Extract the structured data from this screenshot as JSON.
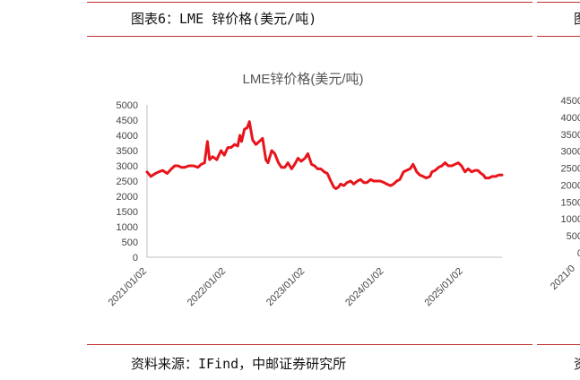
{
  "heading": "图表6：LME 锌价格(美元/吨)",
  "source": "资料来源：IFind，中邮证券研究所",
  "clipped_right": {
    "heading_glyph": "图",
    "source_glyph": "资",
    "y_ticks": [
      "4500",
      "4000",
      "3500",
      "3000",
      "2500",
      "2000",
      "1500",
      "1000",
      "500",
      "0"
    ],
    "x_tick": "2021/0"
  },
  "colors": {
    "rule": "#c0312f",
    "series": "#e8141b",
    "axis": "#bfbfbf"
  },
  "chart_data": {
    "type": "line",
    "title": "LME锌价格(美元/吨)",
    "xlabel": "",
    "ylabel": "",
    "ylim": [
      0,
      5000
    ],
    "yticks": [
      0,
      500,
      1000,
      1500,
      2000,
      2500,
      3000,
      3500,
      4000,
      4500,
      5000
    ],
    "xlim": [
      "2021-01-02",
      "2025-06-30"
    ],
    "xtick_labels": [
      "2021/01/02",
      "2022/01/02",
      "2023/01/02",
      "2024/01/02",
      "2025/01/02"
    ],
    "grid": false,
    "legend": "none",
    "series": [
      {
        "x": [
          "2021-01-02",
          "2021-01-20",
          "2021-02-10",
          "2021-02-25",
          "2021-03-15",
          "2021-04-05",
          "2021-04-25",
          "2021-05-10",
          "2021-05-25",
          "2021-06-10",
          "2021-06-25",
          "2021-07-15",
          "2021-08-05",
          "2021-08-25",
          "2021-09-10",
          "2021-09-25",
          "2021-10-08",
          "2021-10-18",
          "2021-11-01",
          "2021-11-20",
          "2021-12-10",
          "2021-12-25",
          "2022-01-10",
          "2022-01-25",
          "2022-02-10",
          "2022-02-25",
          "2022-03-07",
          "2022-03-15",
          "2022-03-28",
          "2022-04-10",
          "2022-04-20",
          "2022-05-05",
          "2022-05-20",
          "2022-06-05",
          "2022-06-20",
          "2022-07-05",
          "2022-07-15",
          "2022-08-01",
          "2022-08-15",
          "2022-09-01",
          "2022-09-15",
          "2022-10-01",
          "2022-10-15",
          "2022-11-01",
          "2022-11-15",
          "2022-12-01",
          "2022-12-15",
          "2023-01-02",
          "2023-01-15",
          "2023-02-01",
          "2023-02-15",
          "2023-03-01",
          "2023-03-15",
          "2023-04-01",
          "2023-04-15",
          "2023-05-01",
          "2023-05-15",
          "2023-05-25",
          "2023-06-05",
          "2023-06-15",
          "2023-07-01",
          "2023-07-15",
          "2023-08-01",
          "2023-08-15",
          "2023-09-01",
          "2023-09-15",
          "2023-10-01",
          "2023-10-15",
          "2023-11-01",
          "2023-11-15",
          "2023-12-01",
          "2023-12-15",
          "2024-01-02",
          "2024-01-15",
          "2024-02-01",
          "2024-02-15",
          "2024-03-01",
          "2024-03-15",
          "2024-04-01",
          "2024-04-15",
          "2024-05-01",
          "2024-05-15",
          "2024-06-01",
          "2024-06-15",
          "2024-07-01",
          "2024-07-15",
          "2024-08-01",
          "2024-08-10",
          "2024-08-25",
          "2024-09-10",
          "2024-09-25",
          "2024-10-10",
          "2024-10-25",
          "2024-11-10",
          "2024-11-25",
          "2024-12-10",
          "2024-12-25",
          "2025-01-10",
          "2025-01-25",
          "2025-02-10",
          "2025-02-25",
          "2025-03-10",
          "2025-03-25",
          "2025-04-05",
          "2025-04-15",
          "2025-05-01",
          "2025-05-15",
          "2025-06-01",
          "2025-06-15",
          "2025-06-30"
        ],
        "values": [
          2800,
          2650,
          2750,
          2800,
          2850,
          2750,
          2900,
          3000,
          3000,
          2950,
          2950,
          3000,
          3000,
          2950,
          3050,
          3100,
          3800,
          3200,
          3300,
          3200,
          3500,
          3350,
          3600,
          3600,
          3700,
          3650,
          4000,
          3800,
          4200,
          4250,
          4450,
          3850,
          3700,
          3800,
          3900,
          3200,
          3100,
          3500,
          3400,
          3100,
          2950,
          2950,
          3100,
          2900,
          3050,
          3250,
          3150,
          3250,
          3400,
          3050,
          3000,
          2900,
          2900,
          2800,
          2750,
          2500,
          2300,
          2250,
          2300,
          2400,
          2350,
          2450,
          2500,
          2400,
          2500,
          2550,
          2450,
          2450,
          2550,
          2500,
          2500,
          2500,
          2450,
          2400,
          2350,
          2400,
          2500,
          2550,
          2800,
          2850,
          2900,
          3050,
          2800,
          2700,
          2650,
          2600,
          2650,
          2800,
          2850,
          2950,
          3000,
          3100,
          3000,
          3000,
          3050,
          3100,
          3000,
          2800,
          2900,
          2800,
          2850,
          2850,
          2750,
          2700,
          2600,
          2600,
          2650,
          2650,
          2700,
          2700
        ]
      }
    ]
  }
}
